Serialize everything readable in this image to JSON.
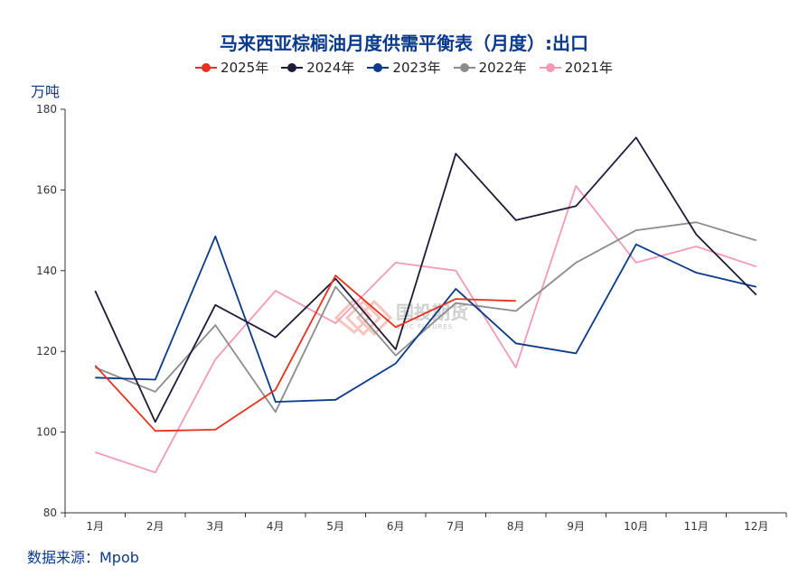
{
  "title": "马来西亚棕榈油月度供需平衡表（月度）:出口",
  "unit_label": "万吨",
  "source": "数据来源：Mpob",
  "watermark": {
    "brand": "国投期货",
    "sub": "SDIC FUTURES"
  },
  "chart_data": {
    "type": "line",
    "categories": [
      "1月",
      "2月",
      "3月",
      "4月",
      "5月",
      "6月",
      "7月",
      "8月",
      "9月",
      "10月",
      "11月",
      "12月"
    ],
    "ylim": [
      80,
      180
    ],
    "yticks": [
      80,
      100,
      120,
      140,
      160,
      180
    ],
    "series": [
      {
        "name": "2021年",
        "color": "#f59ab5",
        "values": [
          95,
          90,
          118,
          135,
          127,
          142,
          140,
          116,
          161,
          142,
          146,
          141
        ]
      },
      {
        "name": "2022年",
        "color": "#8c8c8c",
        "values": [
          116,
          110,
          126.5,
          105,
          136,
          119,
          132,
          130,
          142,
          150,
          152,
          147.5
        ]
      },
      {
        "name": "2023年",
        "color": "#0a3a8c",
        "values": [
          113.5,
          113,
          148.5,
          107.5,
          108,
          117,
          135.5,
          122,
          119.5,
          146.5,
          139.5,
          136
        ]
      },
      {
        "name": "2024年",
        "color": "#1c1c3a",
        "values": [
          135,
          102.5,
          131.5,
          123.5,
          138,
          120.5,
          169,
          152.5,
          156,
          173,
          149,
          134
        ]
      },
      {
        "name": "2025年",
        "color": "#e8311a",
        "values": [
          116.5,
          100.3,
          100.6,
          110.5,
          138.8,
          126,
          133,
          132.5,
          null,
          null,
          null,
          null
        ]
      }
    ],
    "legend_order": [
      "2025年",
      "2024年",
      "2023年",
      "2022年",
      "2021年"
    ]
  }
}
